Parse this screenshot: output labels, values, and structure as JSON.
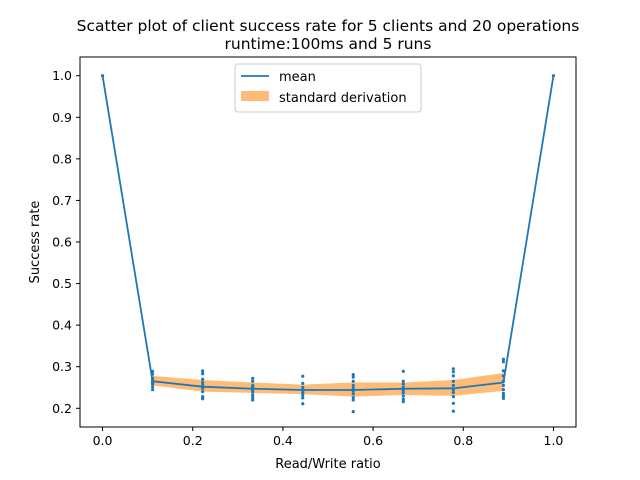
{
  "chart_data": {
    "type": "line",
    "title": "Scatter plot of client success rate for 5 clients and 20 operations",
    "subtitle": "runtime:100ms and 5 runs",
    "xlabel": "Read/Write ratio",
    "ylabel": "Success rate",
    "xlim": [
      -0.05,
      1.05
    ],
    "ylim": [
      0.155,
      1.045
    ],
    "xticks": [
      0.0,
      0.2,
      0.4,
      0.6,
      0.8,
      1.0
    ],
    "xtick_labels": [
      "0.0",
      "0.2",
      "0.4",
      "0.6",
      "0.8",
      "1.0"
    ],
    "yticks": [
      0.2,
      0.3,
      0.4,
      0.5,
      0.6,
      0.7,
      0.8,
      0.9,
      1.0
    ],
    "ytick_labels": [
      "0.2",
      "0.3",
      "0.4",
      "0.5",
      "0.6",
      "0.7",
      "0.8",
      "0.9",
      "1.0"
    ],
    "grid": false,
    "legend_position": "top-center",
    "colors": {
      "mean": "#1f77b4",
      "std": "#ffbb78",
      "points": "#1f77b4"
    },
    "legend": [
      {
        "label": "mean",
        "kind": "line"
      },
      {
        "label": "standard derivation",
        "kind": "band"
      }
    ],
    "mean": {
      "x": [
        0.0,
        0.111,
        0.222,
        0.333,
        0.444,
        0.556,
        0.667,
        0.778,
        0.889,
        1.0
      ],
      "y": [
        1.0,
        0.265,
        0.252,
        0.247,
        0.244,
        0.244,
        0.247,
        0.248,
        0.262,
        1.0
      ]
    },
    "std_band": {
      "x": [
        0.111,
        0.222,
        0.333,
        0.444,
        0.556,
        0.667,
        0.778,
        0.889
      ],
      "lower": [
        0.255,
        0.24,
        0.237,
        0.234,
        0.228,
        0.232,
        0.23,
        0.242
      ],
      "upper": [
        0.278,
        0.268,
        0.262,
        0.257,
        0.262,
        0.262,
        0.268,
        0.285
      ]
    },
    "scatter": {
      "x": [
        0.111,
        0.111,
        0.111,
        0.111,
        0.111,
        0.111,
        0.111,
        0.111,
        0.222,
        0.222,
        0.222,
        0.222,
        0.222,
        0.222,
        0.222,
        0.222,
        0.222,
        0.333,
        0.333,
        0.333,
        0.333,
        0.333,
        0.333,
        0.333,
        0.333,
        0.333,
        0.444,
        0.444,
        0.444,
        0.444,
        0.444,
        0.444,
        0.444,
        0.444,
        0.556,
        0.556,
        0.556,
        0.556,
        0.556,
        0.556,
        0.556,
        0.556,
        0.556,
        0.556,
        0.667,
        0.667,
        0.667,
        0.667,
        0.667,
        0.667,
        0.667,
        0.667,
        0.667,
        0.778,
        0.778,
        0.778,
        0.778,
        0.778,
        0.778,
        0.778,
        0.778,
        0.778,
        0.778,
        0.889,
        0.889,
        0.889,
        0.889,
        0.889,
        0.889,
        0.889,
        0.889,
        0.889,
        0.889,
        0.0,
        1.0
      ],
      "y": [
        0.289,
        0.282,
        0.272,
        0.266,
        0.262,
        0.258,
        0.252,
        0.245,
        0.29,
        0.283,
        0.27,
        0.262,
        0.255,
        0.248,
        0.24,
        0.228,
        0.223,
        0.272,
        0.265,
        0.255,
        0.25,
        0.245,
        0.24,
        0.233,
        0.226,
        0.22,
        0.277,
        0.26,
        0.25,
        0.245,
        0.238,
        0.232,
        0.225,
        0.211,
        0.281,
        0.275,
        0.265,
        0.255,
        0.248,
        0.242,
        0.235,
        0.226,
        0.22,
        0.192,
        0.289,
        0.265,
        0.258,
        0.25,
        0.244,
        0.238,
        0.23,
        0.222,
        0.216,
        0.295,
        0.288,
        0.278,
        0.265,
        0.255,
        0.245,
        0.238,
        0.228,
        0.212,
        0.193,
        0.318,
        0.312,
        0.29,
        0.278,
        0.265,
        0.255,
        0.245,
        0.236,
        0.23,
        0.224,
        1.0,
        1.0
      ]
    }
  }
}
